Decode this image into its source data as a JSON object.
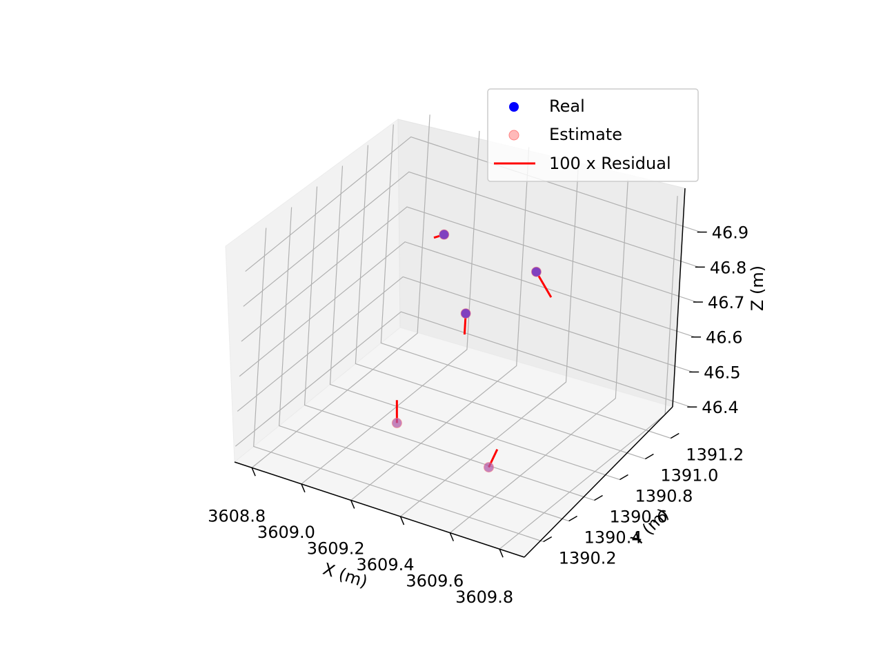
{
  "chart_data": {
    "type": "scatter",
    "projection": "3d",
    "title": "",
    "xlabel": "X (m)",
    "ylabel": "Y (m)",
    "zlabel": "Z (m)",
    "x_ticks": [
      "3608.8",
      "3609.0",
      "3609.2",
      "3609.4",
      "3609.6",
      "3609.8"
    ],
    "y_ticks": [
      "1390.2",
      "1390.4",
      "1390.6",
      "1390.8",
      "1391.0",
      "1391.2"
    ],
    "z_ticks": [
      "46.4",
      "46.5",
      "46.6",
      "46.7",
      "46.8",
      "46.9"
    ],
    "grid": true,
    "legend": {
      "position": "top-right",
      "entries": [
        {
          "label": "Real",
          "kind": "marker",
          "color": "#0000ff"
        },
        {
          "label": "Estimate",
          "kind": "marker",
          "color": "#ff8080"
        },
        {
          "label": "100 x Residual",
          "kind": "line",
          "color": "#ff0000"
        }
      ]
    },
    "series": [
      {
        "name": "Real",
        "color": "#0000ff",
        "points": [
          {
            "x": 3609.1,
            "y": 1390.9,
            "z": 46.84
          },
          {
            "x": 3609.45,
            "y": 1390.95,
            "z": 46.8
          },
          {
            "x": 3609.3,
            "y": 1390.7,
            "z": 46.72
          },
          {
            "x": 3609.1,
            "y": 1390.6,
            "z": 46.39
          },
          {
            "x": 3609.45,
            "y": 1390.65,
            "z": 46.33
          }
        ]
      },
      {
        "name": "Estimate",
        "color": "#ff8080",
        "points": [
          {
            "x": 3609.1,
            "y": 1390.9,
            "z": 46.84
          },
          {
            "x": 3609.45,
            "y": 1390.95,
            "z": 46.8
          },
          {
            "x": 3609.3,
            "y": 1390.7,
            "z": 46.72
          },
          {
            "x": 3609.1,
            "y": 1390.6,
            "z": 46.39
          },
          {
            "x": 3609.45,
            "y": 1390.65,
            "z": 46.33
          }
        ]
      },
      {
        "name": "100 x Residual",
        "color": "#ff0000",
        "segments": [
          {
            "from": {
              "x": 3609.1,
              "y": 1390.9,
              "z": 46.84
            },
            "to": {
              "x": 3609.07,
              "y": 1390.88,
              "z": 46.83
            }
          },
          {
            "from": {
              "x": 3609.45,
              "y": 1390.95,
              "z": 46.8
            },
            "to": {
              "x": 3609.5,
              "y": 1390.98,
              "z": 46.73
            }
          },
          {
            "from": {
              "x": 3609.3,
              "y": 1390.7,
              "z": 46.72
            },
            "to": {
              "x": 3609.3,
              "y": 1390.7,
              "z": 46.66
            }
          },
          {
            "from": {
              "x": 3609.1,
              "y": 1390.6,
              "z": 46.39
            },
            "to": {
              "x": 3609.09,
              "y": 1390.61,
              "z": 46.45
            }
          },
          {
            "from": {
              "x": 3609.45,
              "y": 1390.65,
              "z": 46.33
            },
            "to": {
              "x": 3609.47,
              "y": 1390.67,
              "z": 46.38
            }
          }
        ]
      }
    ]
  }
}
